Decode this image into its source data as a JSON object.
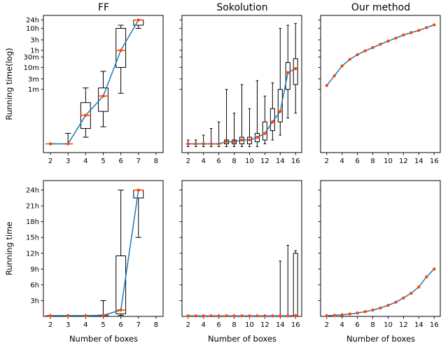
{
  "figure": {
    "column_titles": [
      "FF",
      "Sokolution",
      "Our method"
    ],
    "row_ylabels": [
      "Running time(log)",
      "Running time"
    ],
    "xlabel": "Number of boxes",
    "colors": {
      "line": "#1f77b4",
      "accent": "#ff4500",
      "axis": "#000000",
      "bg": "#ffffff"
    },
    "ytick_sets": {
      "log": [
        {
          "v": 60,
          "t": "1m"
        },
        {
          "v": 180,
          "t": "3m"
        },
        {
          "v": 600,
          "t": "10m"
        },
        {
          "v": 1800,
          "t": "30m"
        },
        {
          "v": 3600,
          "t": "1h"
        },
        {
          "v": 10800,
          "t": "3h"
        },
        {
          "v": 36000,
          "t": "10h"
        },
        {
          "v": 86400,
          "t": "24h"
        }
      ],
      "linear": [
        {
          "v": 3,
          "t": "3h"
        },
        {
          "v": 6,
          "t": "6h"
        },
        {
          "v": 9,
          "t": "9h"
        },
        {
          "v": 12,
          "t": "12h"
        },
        {
          "v": 15,
          "t": "15h"
        },
        {
          "v": 18,
          "t": "18h"
        },
        {
          "v": 21,
          "t": "21h"
        },
        {
          "v": 24,
          "t": "24h"
        }
      ]
    }
  },
  "chart_data": [
    {
      "id": "ff-log",
      "row": 0,
      "col": 0,
      "type": "box+line",
      "title": "FF",
      "yscale": "log",
      "yunit": "seconds",
      "ylim": [
        0.08,
        140000
      ],
      "yticks": "log",
      "show_ylabels": true,
      "xlim": [
        1.6,
        8.4
      ],
      "xticks": [
        2,
        3,
        4,
        5,
        6,
        7,
        8
      ],
      "x": [
        2,
        3,
        4,
        5,
        6,
        7
      ],
      "med": [
        0.2,
        0.2,
        4,
        30,
        3600,
        86400
      ],
      "q1": [
        0.2,
        0.2,
        1,
        6,
        600,
        50000
      ],
      "q3": [
        0.2,
        0.2,
        15,
        70,
        36000,
        86400
      ],
      "wlo": [
        0.2,
        0.2,
        0.4,
        1.2,
        40,
        36000
      ],
      "whi": [
        0.2,
        0.6,
        70,
        400,
        50000,
        86400
      ]
    },
    {
      "id": "sokolution-log",
      "row": 0,
      "col": 1,
      "type": "box+line",
      "title": "Sokolution",
      "yscale": "log",
      "yunit": "seconds",
      "ylim": [
        0.08,
        140000
      ],
      "yticks": "log",
      "show_ylabels": false,
      "xlim": [
        1.2,
        16.8
      ],
      "xticks": [
        2,
        4,
        6,
        8,
        10,
        12,
        14,
        16
      ],
      "x": [
        2,
        3,
        4,
        5,
        6,
        7,
        8,
        9,
        10,
        11,
        12,
        13,
        14,
        15,
        16
      ],
      "med": [
        0.2,
        0.2,
        0.2,
        0.2,
        0.2,
        0.25,
        0.25,
        0.3,
        0.3,
        0.4,
        0.6,
        2,
        6,
        350,
        530
      ],
      "q1": [
        0.2,
        0.2,
        0.2,
        0.2,
        0.2,
        0.2,
        0.2,
        0.2,
        0.2,
        0.25,
        0.3,
        0.8,
        2,
        60,
        100
      ],
      "q3": [
        0.2,
        0.2,
        0.2,
        0.2,
        0.2,
        0.3,
        0.3,
        0.4,
        0.4,
        0.6,
        2,
        8,
        60,
        1000,
        1500
      ],
      "wlo": [
        0.15,
        0.15,
        0.15,
        0.15,
        0.15,
        0.15,
        0.15,
        0.15,
        0.15,
        0.15,
        0.2,
        0.3,
        0.5,
        3,
        5
      ],
      "whi": [
        0.3,
        0.3,
        0.5,
        1,
        2,
        60,
        5,
        100,
        8,
        150,
        30,
        120,
        36000,
        50000,
        60000
      ]
    },
    {
      "id": "ours-log",
      "row": 0,
      "col": 2,
      "type": "line",
      "title": "Our method",
      "yscale": "log",
      "yunit": "seconds",
      "ylim": [
        0.08,
        140000
      ],
      "yticks": "log",
      "show_ylabels": false,
      "xlim": [
        1.2,
        16.8
      ],
      "xticks": [
        2,
        4,
        6,
        8,
        10,
        12,
        14,
        16
      ],
      "x": [
        2,
        3,
        4,
        5,
        6,
        7,
        8,
        9,
        10,
        11,
        12,
        13,
        14,
        15,
        16
      ],
      "med": [
        90,
        250,
        700,
        1400,
        2300,
        3400,
        4800,
        6800,
        9500,
        13000,
        18000,
        23000,
        29000,
        39000,
        52000
      ]
    },
    {
      "id": "ff-linear",
      "row": 1,
      "col": 0,
      "type": "box+line",
      "title": "FF",
      "yscale": "linear",
      "yunit": "hours",
      "ylim": [
        0,
        25.8
      ],
      "yticks": "linear",
      "show_ylabels": true,
      "xlim": [
        1.6,
        8.4
      ],
      "xticks": [
        2,
        3,
        4,
        5,
        6,
        7,
        8
      ],
      "x": [
        2,
        3,
        4,
        5,
        6,
        7
      ],
      "med": [
        0.15,
        0.15,
        0.15,
        0.2,
        1.2,
        24
      ],
      "q1": [
        0.15,
        0.15,
        0.15,
        0.15,
        0.5,
        22.5
      ],
      "q3": [
        0.15,
        0.15,
        0.15,
        0.25,
        11.5,
        24
      ],
      "wlo": [
        0.1,
        0.1,
        0.1,
        0.1,
        0.2,
        15
      ],
      "whi": [
        0.15,
        0.15,
        0.15,
        3,
        24,
        24
      ]
    },
    {
      "id": "sokolution-linear",
      "row": 1,
      "col": 1,
      "type": "box+line",
      "title": "Sokolution",
      "yscale": "linear",
      "yunit": "hours",
      "ylim": [
        0,
        25.8
      ],
      "yticks": "linear",
      "show_ylabels": false,
      "xlim": [
        1.2,
        16.8
      ],
      "xticks": [
        2,
        4,
        6,
        8,
        10,
        12,
        14,
        16
      ],
      "x": [
        2,
        3,
        4,
        5,
        6,
        7,
        8,
        9,
        10,
        11,
        12,
        13,
        14,
        15,
        16
      ],
      "med": [
        0.1,
        0.1,
        0.1,
        0.1,
        0.1,
        0.1,
        0.1,
        0.1,
        0.1,
        0.1,
        0.1,
        0.1,
        0.1,
        0.1,
        0.15
      ],
      "q1": [
        0.1,
        0.1,
        0.1,
        0.1,
        0.1,
        0.1,
        0.1,
        0.1,
        0.1,
        0.1,
        0.1,
        0.1,
        0.1,
        0.1,
        0.1
      ],
      "q3": [
        0.1,
        0.1,
        0.1,
        0.1,
        0.1,
        0.1,
        0.1,
        0.1,
        0.1,
        0.1,
        0.1,
        0.1,
        0.1,
        0.1,
        12
      ],
      "wlo": [
        0.05,
        0.05,
        0.05,
        0.05,
        0.05,
        0.05,
        0.05,
        0.05,
        0.05,
        0.05,
        0.05,
        0.05,
        0.05,
        0.05,
        0.05
      ],
      "whi": [
        0.1,
        0.1,
        0.1,
        0.1,
        0.1,
        0.1,
        0.1,
        0.1,
        0.1,
        0.1,
        0.1,
        0.1,
        10.5,
        13.5,
        12.5
      ]
    },
    {
      "id": "ours-linear",
      "row": 1,
      "col": 2,
      "type": "line",
      "title": "Our method",
      "yscale": "linear",
      "yunit": "hours",
      "ylim": [
        0,
        25.8
      ],
      "yticks": "linear",
      "show_ylabels": false,
      "xlim": [
        1.2,
        16.8
      ],
      "xticks": [
        2,
        4,
        6,
        8,
        10,
        12,
        14,
        16
      ],
      "x": [
        2,
        3,
        4,
        5,
        6,
        7,
        8,
        9,
        10,
        11,
        12,
        13,
        14,
        15,
        16
      ],
      "med": [
        0.15,
        0.2,
        0.3,
        0.45,
        0.65,
        0.9,
        1.2,
        1.6,
        2.1,
        2.7,
        3.5,
        4.4,
        5.6,
        7.5,
        9.0
      ]
    }
  ]
}
